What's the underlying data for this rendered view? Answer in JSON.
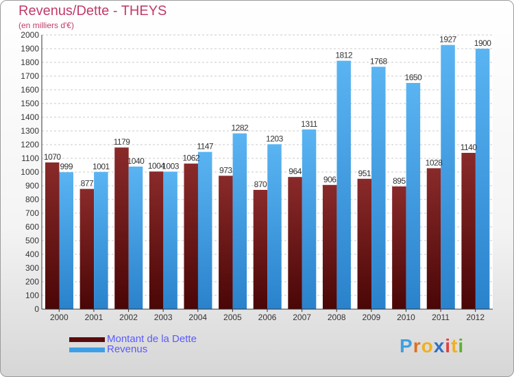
{
  "chart_data": {
    "type": "bar",
    "title": "Revenus/Dette - THEYS",
    "subtitle": "(en milliers d'€)",
    "categories": [
      "2000",
      "2001",
      "2002",
      "2003",
      "2004",
      "2005",
      "2006",
      "2007",
      "2008",
      "2009",
      "2010",
      "2011",
      "2012"
    ],
    "series": [
      {
        "name": "Montant de la Dette",
        "color": "#7a1a1a",
        "values": [
          1070,
          877,
          1179,
          1004,
          1062,
          973,
          870,
          964,
          906,
          951,
          895,
          1028,
          1140
        ],
        "labels": [
          "1070",
          "877",
          "1179",
          "1004",
          "1062",
          "973",
          "870",
          "964",
          "906",
          "951",
          "895",
          "1028",
          "1140"
        ]
      },
      {
        "name": "Revenus",
        "color": "#3f9fe6",
        "values": [
          999,
          1001,
          1040,
          1003,
          1147,
          1282,
          1203,
          1311,
          1812,
          1768,
          1650,
          1927,
          1900
        ],
        "labels": [
          "999",
          "1001",
          "1040",
          "1003",
          "1147",
          "1282",
          "1203",
          "1311",
          "1812",
          "1768",
          "1650",
          "1927",
          "1900"
        ]
      }
    ],
    "ylim": [
      0,
      2000
    ],
    "yticks": [
      0,
      100,
      200,
      300,
      400,
      500,
      600,
      700,
      800,
      900,
      1000,
      1100,
      1200,
      1300,
      1400,
      1500,
      1600,
      1700,
      1800,
      1900,
      2000
    ],
    "ytick_labels": [
      "0",
      "100",
      "200",
      "300",
      "400",
      "500",
      "600",
      "700",
      "800",
      "900",
      "1000",
      "1100",
      "1200",
      "1300",
      "1400",
      "1500",
      "1600",
      "1700",
      "1800",
      "1900",
      "2000"
    ],
    "grid": true,
    "legend": "bottom-left"
  },
  "logo": {
    "letters": [
      "P",
      "r",
      "o",
      "x",
      "i",
      "t",
      "i"
    ],
    "colors": [
      "#3fa0e0",
      "#e07020",
      "#f0b020",
      "#3070c0",
      "#e04040",
      "#f0b020",
      "#60b030"
    ]
  }
}
